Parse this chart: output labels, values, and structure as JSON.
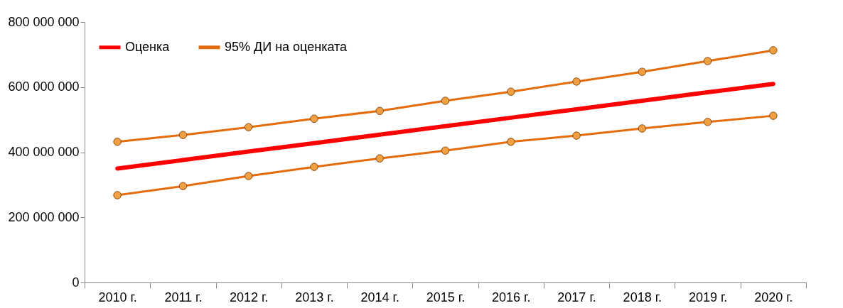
{
  "chart_data": {
    "type": "line",
    "categories": [
      "2010 г.",
      "2011 г.",
      "2012 г.",
      "2013 г.",
      "2014 г.",
      "2015 г.",
      "2016 г.",
      "2017 г.",
      "2018 г.",
      "2019 г.",
      "2020 г."
    ],
    "series": [
      {
        "name": "Оценка",
        "color": "#ff0000",
        "marker": "none",
        "values": [
          350000000,
          376000000,
          402000000,
          428000000,
          454000000,
          480000000,
          506000000,
          532000000,
          558000000,
          584000000,
          610000000
        ]
      },
      {
        "name": "95% ДИ на оценката",
        "color": "#e46c0a",
        "marker": "circle",
        "values": [
          432000000,
          453000000,
          477000000,
          503000000,
          527000000,
          558000000,
          586000000,
          617000000,
          647000000,
          680000000,
          713000000
        ]
      },
      {
        "color": "#e46c0a",
        "marker": "circle",
        "values": [
          268000000,
          296000000,
          327000000,
          355000000,
          381000000,
          405000000,
          432000000,
          451000000,
          473000000,
          493000000,
          512000000
        ]
      }
    ],
    "ylim": [
      0,
      800000000
    ],
    "yticks": [
      0,
      {
        "value": 200000000,
        "label": "200 000 000"
      },
      {
        "value": 400000000,
        "label": "400 000 000"
      },
      {
        "value": 600000000,
        "label": "600 000 000"
      },
      {
        "value": 800000000,
        "label": "800 000 000"
      }
    ],
    "legend": "top left"
  }
}
